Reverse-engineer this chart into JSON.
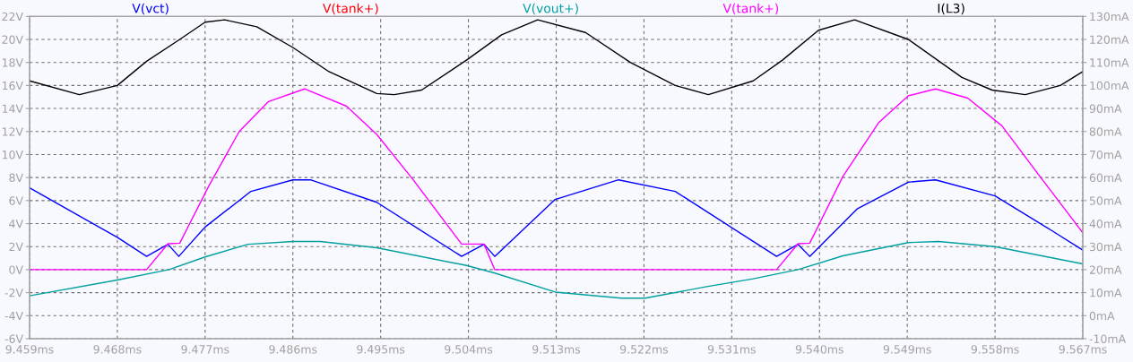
{
  "chart_data": {
    "type": "line",
    "legend": "top",
    "grid": true,
    "marker": "none",
    "xlim": [
      9.459,
      9.567
    ],
    "xticks": [
      {
        "value": 9.459,
        "label": "9.459ms"
      },
      {
        "value": 9.468,
        "label": "9.468ms"
      },
      {
        "value": 9.477,
        "label": "9.477ms"
      },
      {
        "value": 9.486,
        "label": "9.486ms"
      },
      {
        "value": 9.495,
        "label": "9.495ms"
      },
      {
        "value": 9.504,
        "label": "9.504ms"
      },
      {
        "value": 9.513,
        "label": "9.513ms"
      },
      {
        "value": 9.522,
        "label": "9.522ms"
      },
      {
        "value": 9.531,
        "label": "9.531ms"
      },
      {
        "value": 9.54,
        "label": "9.540ms"
      },
      {
        "value": 9.549,
        "label": "9.549ms"
      },
      {
        "value": 9.558,
        "label": "9.558ms"
      },
      {
        "value": 9.567,
        "label": "9.567ms"
      }
    ],
    "ylim": [
      -6,
      22
    ],
    "yticks": [
      {
        "value": -6,
        "label": "-6V"
      },
      {
        "value": -4,
        "label": "-4V"
      },
      {
        "value": -2,
        "label": "-2V"
      },
      {
        "value": 0,
        "label": "0V"
      },
      {
        "value": 2,
        "label": "2V"
      },
      {
        "value": 4,
        "label": "4V"
      },
      {
        "value": 6,
        "label": "6V"
      },
      {
        "value": 8,
        "label": "8V"
      },
      {
        "value": 10,
        "label": "10V"
      },
      {
        "value": 12,
        "label": "12V"
      },
      {
        "value": 14,
        "label": "14V"
      },
      {
        "value": 16,
        "label": "16V"
      },
      {
        "value": 18,
        "label": "18V"
      },
      {
        "value": 20,
        "label": "20V"
      },
      {
        "value": 22,
        "label": "22V"
      }
    ],
    "y2lim": [
      -10,
      130
    ],
    "y2ticks": [
      {
        "value": -10,
        "label": "-10mA"
      },
      {
        "value": 0,
        "label": "0mA"
      },
      {
        "value": 10,
        "label": "10mA"
      },
      {
        "value": 20,
        "label": "20mA"
      },
      {
        "value": 30,
        "label": "30mA"
      },
      {
        "value": 40,
        "label": "40mA"
      },
      {
        "value": 50,
        "label": "50mA"
      },
      {
        "value": 60,
        "label": "60mA"
      },
      {
        "value": 70,
        "label": "70mA"
      },
      {
        "value": 80,
        "label": "80mA"
      },
      {
        "value": 90,
        "label": "90mA"
      },
      {
        "value": 100,
        "label": "100mA"
      },
      {
        "value": 110,
        "label": "110mA"
      },
      {
        "value": 120,
        "label": "120mA"
      },
      {
        "value": 130,
        "label": "130mA"
      }
    ],
    "series": [
      {
        "name": "V(vct)",
        "color": "#0000ff",
        "x": [
          9.459,
          9.468,
          9.471,
          9.4732,
          9.4743,
          9.477,
          9.4817,
          9.486,
          9.4878,
          9.4946,
          9.5033,
          9.5056,
          9.5067,
          9.5129,
          9.5194,
          9.5252,
          9.5332,
          9.5356,
          9.5378,
          9.539,
          9.5439,
          9.5491,
          9.5519,
          9.558,
          9.5638,
          9.567
        ],
        "values": [
          7.1,
          2.8,
          1.15,
          2.2,
          1.15,
          3.7,
          6.8,
          7.8,
          7.8,
          5.85,
          1.15,
          2.2,
          1.15,
          6.1,
          7.8,
          6.8,
          2.45,
          1.15,
          2.2,
          1.15,
          5.3,
          7.6,
          7.8,
          6.4,
          3.4,
          1.7
        ]
      },
      {
        "name": "V(tank+)",
        "color": "#ff0000"
      },
      {
        "name": "V(vout+)",
        "color": "#00a0a0",
        "x": [
          9.459,
          9.468,
          9.4733,
          9.477,
          9.4814,
          9.486,
          9.4888,
          9.4946,
          9.5038,
          9.5067,
          9.5129,
          9.5197,
          9.5221,
          9.5283,
          9.5332,
          9.5378,
          9.5424,
          9.5491,
          9.5522,
          9.558,
          9.567
        ],
        "values": [
          -2.27,
          -0.9,
          0,
          1.1,
          2.2,
          2.45,
          2.45,
          1.9,
          0.36,
          -0.3,
          -1.95,
          -2.48,
          -2.48,
          -1.5,
          -0.8,
          0,
          1.2,
          2.35,
          2.45,
          2.0,
          0.5
        ]
      },
      {
        "name": "V(tank+)",
        "color": "#ff00ff",
        "x": [
          9.459,
          9.471,
          9.4732,
          9.4744,
          9.4774,
          9.4805,
          9.4835,
          9.4872,
          9.4915,
          9.4946,
          9.4983,
          9.5033,
          9.5056,
          9.5067,
          9.5356,
          9.5378,
          9.539,
          9.5424,
          9.5461,
          9.5491,
          9.5519,
          9.5552,
          9.5587,
          9.5626,
          9.567
        ],
        "values": [
          0,
          0,
          2.25,
          2.3,
          7.3,
          12.0,
          14.6,
          15.7,
          14.2,
          11.75,
          7.85,
          2.22,
          2.22,
          0,
          0,
          2.25,
          2.3,
          8.1,
          12.8,
          15.1,
          15.7,
          14.9,
          12.5,
          8.1,
          3.2
        ]
      },
      {
        "name": "I(L3)",
        "color": "#000000",
        "axis": "y2",
        "x": [
          9.459,
          9.4641,
          9.468,
          9.471,
          9.4744,
          9.477,
          9.479,
          9.4823,
          9.486,
          9.4897,
          9.4946,
          9.4964,
          9.4992,
          9.5038,
          9.5074,
          9.5111,
          9.516,
          9.5206,
          9.5252,
          9.5286,
          9.5332,
          9.5362,
          9.5399,
          9.5436,
          9.5491,
          9.5546,
          9.5577,
          9.5611,
          9.5647,
          9.567
        ],
        "values": [
          102,
          96,
          100,
          110.5,
          120,
          127.5,
          128.5,
          125.5,
          116.5,
          106,
          96.5,
          96,
          98,
          111,
          122,
          128.5,
          123,
          110,
          100,
          96,
          102,
          111,
          124,
          128.5,
          120,
          103.5,
          98,
          96,
          100,
          106
        ]
      }
    ]
  }
}
